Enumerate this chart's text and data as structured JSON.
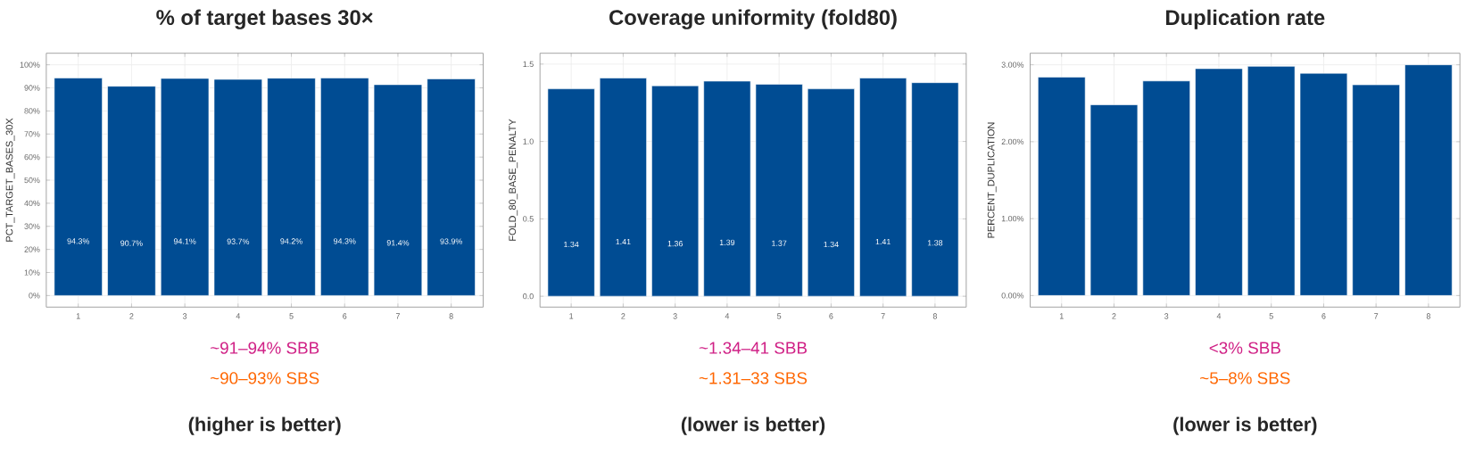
{
  "chart_data": [
    {
      "type": "bar",
      "title": "% of target bases 30×",
      "ylabel": "PCT_TARGET_BASES_30X",
      "categories": [
        "1",
        "2",
        "3",
        "4",
        "5",
        "6",
        "7",
        "8"
      ],
      "values": [
        94.3,
        90.7,
        94.1,
        93.7,
        94.2,
        94.3,
        91.4,
        93.9
      ],
      "value_labels": [
        "94.3%",
        "90.7%",
        "94.1%",
        "93.7%",
        "94.2%",
        "94.3%",
        "91.4%",
        "93.9%"
      ],
      "color": "#004c93",
      "ylim": [
        -5,
        105
      ],
      "yticks": [
        {
          "value": 0,
          "label": "0%"
        },
        {
          "value": 10,
          "label": "10%"
        },
        {
          "value": 20,
          "label": "20%"
        },
        {
          "value": 30,
          "label": "30%"
        },
        {
          "value": 40,
          "label": "40%"
        },
        {
          "value": 50,
          "label": "50%"
        },
        {
          "value": 60,
          "label": "60%"
        },
        {
          "value": 70,
          "label": "70%"
        },
        {
          "value": 80,
          "label": "80%"
        },
        {
          "value": 90,
          "label": "90%"
        },
        {
          "value": 100,
          "label": "100%"
        }
      ],
      "grid": true,
      "annotations": [
        "~91–94% SBB",
        "~90–93% SBS",
        "(higher is better)"
      ]
    },
    {
      "type": "bar",
      "title": "Coverage uniformity (fold80)",
      "ylabel": "FOLD_80_BASE_PENALTY",
      "categories": [
        "1",
        "2",
        "3",
        "4",
        "5",
        "6",
        "7",
        "8"
      ],
      "values": [
        1.34,
        1.41,
        1.36,
        1.39,
        1.37,
        1.34,
        1.41,
        1.38
      ],
      "value_labels": [
        "1.34",
        "1.41",
        "1.36",
        "1.39",
        "1.37",
        "1.34",
        "1.41",
        "1.38"
      ],
      "color": "#004c93",
      "ylim": [
        -0.07,
        1.57
      ],
      "yticks": [
        {
          "value": 0,
          "label": "0.0"
        },
        {
          "value": 0.5,
          "label": "0.5"
        },
        {
          "value": 1,
          "label": "1.0"
        },
        {
          "value": 1.5,
          "label": "1.5"
        }
      ],
      "grid": true,
      "annotations": [
        "~1.34–41 SBB",
        "~1.31–33 SBS",
        "(lower is better)"
      ]
    },
    {
      "type": "bar",
      "title": "Duplication rate",
      "ylabel": "PERCENT_DUPLICATION",
      "categories": [
        "1",
        "2",
        "3",
        "4",
        "5",
        "6",
        "7",
        "8"
      ],
      "values": [
        2.84,
        2.48,
        2.79,
        2.95,
        2.98,
        2.89,
        2.74,
        3.0
      ],
      "color": "#004c93",
      "ylim": [
        -0.15,
        3.15
      ],
      "yticks": [
        {
          "value": 0,
          "label": "0.00%"
        },
        {
          "value": 1,
          "label": "1.00%"
        },
        {
          "value": 2,
          "label": "2.00%"
        },
        {
          "value": 3,
          "label": "3.00%"
        }
      ],
      "grid": true,
      "annotations": [
        "<3% SBB",
        "~5–8% SBS",
        "(lower is better)"
      ]
    }
  ]
}
